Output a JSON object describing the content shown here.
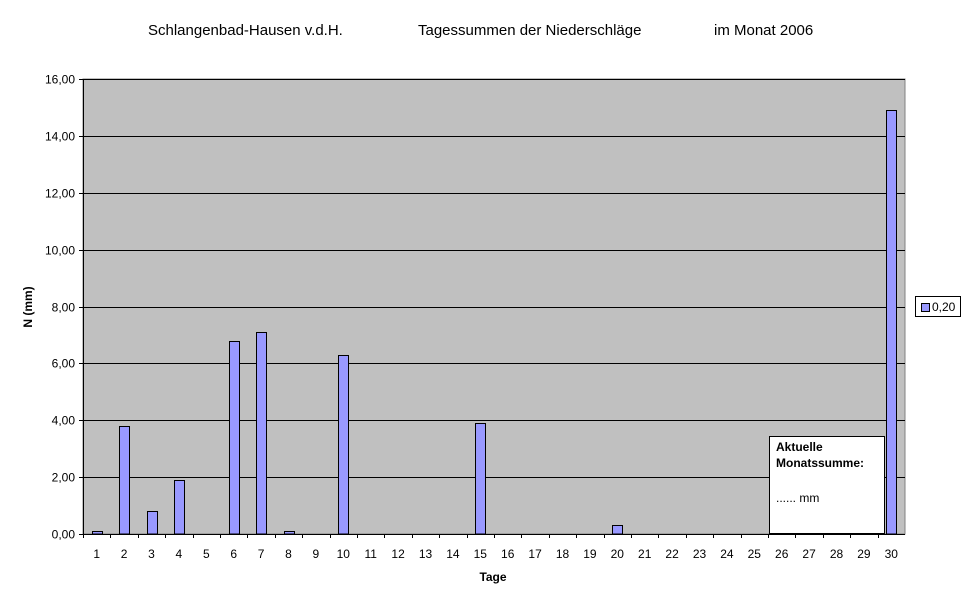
{
  "title": {
    "part1": "Schlangenbad-Hausen v.d.H.",
    "part2": "Tagessummen der Niederschläge",
    "part3": "im Monat 2006"
  },
  "legend": {
    "label": "0,20"
  },
  "infobox": {
    "line1": "Aktuelle",
    "line2": "Monatssumme:",
    "line3": "......   mm"
  },
  "colors": {
    "plot_background": "#c0c0c0",
    "bar_fill": "#9999ff",
    "bar_stroke": "#000000",
    "gridline": "#000000"
  },
  "chart_data": {
    "type": "bar",
    "title": "Schlangenbad-Hausen v.d.H.   Tagessummen der Niederschläge   im Monat 2006",
    "xlabel": "Tage",
    "ylabel": "N (mm)",
    "ylim": [
      0,
      16
    ],
    "y_ticks": [
      "0,00",
      "2,00",
      "4,00",
      "6,00",
      "8,00",
      "10,00",
      "12,00",
      "14,00",
      "16,00"
    ],
    "grid": true,
    "legend_position": "right",
    "categories": [
      "1",
      "2",
      "3",
      "4",
      "5",
      "6",
      "7",
      "8",
      "9",
      "10",
      "11",
      "12",
      "13",
      "14",
      "15",
      "16",
      "17",
      "18",
      "19",
      "20",
      "21",
      "22",
      "23",
      "24",
      "25",
      "26",
      "27",
      "28",
      "29",
      "30"
    ],
    "series": [
      {
        "name": "0,20",
        "values": [
          0.1,
          3.8,
          0.8,
          1.9,
          0,
          6.8,
          7.1,
          0.1,
          0,
          6.3,
          0,
          0,
          0,
          0,
          3.9,
          0,
          0,
          0,
          0,
          0.3,
          0,
          0,
          0,
          0,
          0,
          0,
          0,
          0,
          0,
          14.9
        ]
      }
    ]
  }
}
